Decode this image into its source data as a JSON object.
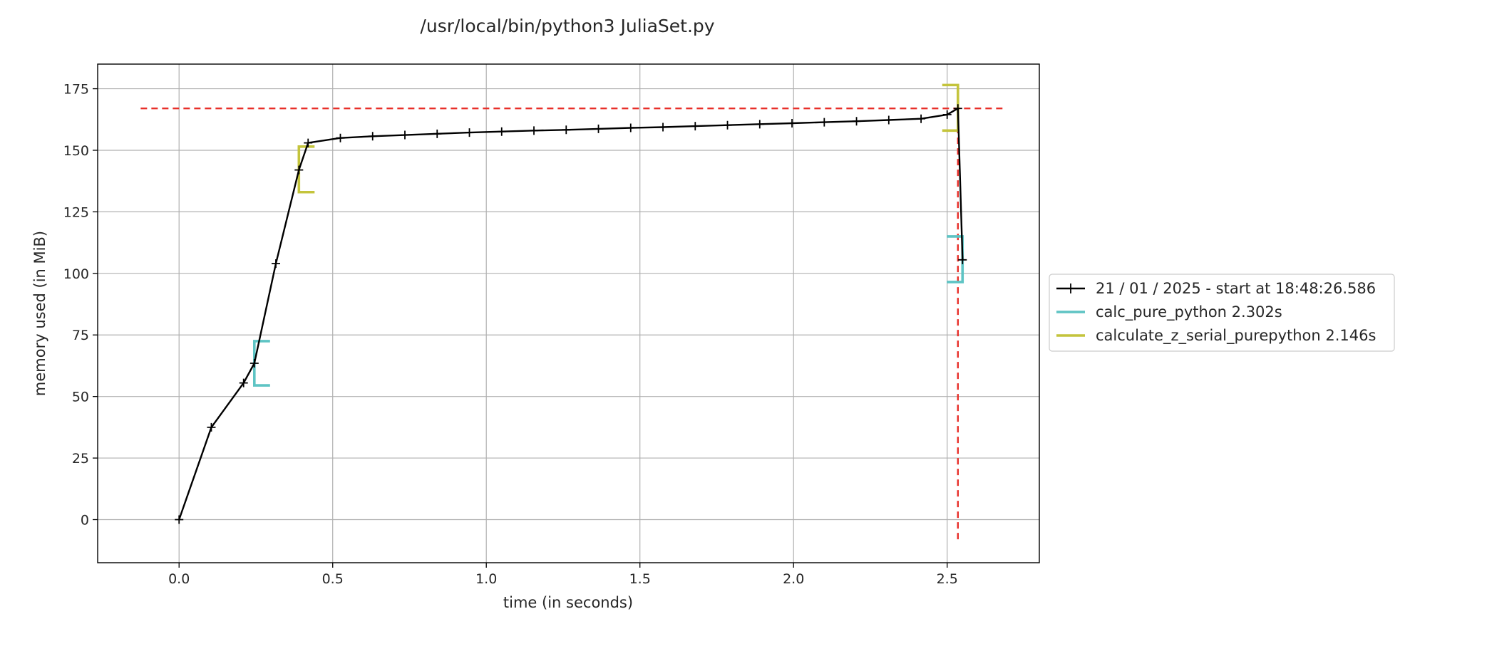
{
  "chart_data": {
    "type": "line",
    "title": "/usr/local/bin/python3 JuliaSet.py",
    "xlabel": "time (in seconds)",
    "ylabel": "memory used (in MiB)",
    "xlim": [
      -0.265,
      2.8
    ],
    "ylim": [
      -17.5,
      185
    ],
    "x_ticks": [
      0.0,
      0.5,
      1.0,
      1.5,
      2.0,
      2.5
    ],
    "x_tick_labels": [
      "0.0",
      "0.5",
      "1.0",
      "1.5",
      "2.0",
      "2.5"
    ],
    "y_ticks": [
      0,
      25,
      50,
      75,
      100,
      125,
      150,
      175
    ],
    "y_tick_labels": [
      "0",
      "25",
      "50",
      "75",
      "100",
      "125",
      "150",
      "175"
    ],
    "grid": true,
    "legend_position": "outside-right",
    "series": [
      {
        "name": "21 / 01 / 2025 - start at 18:48:26.586",
        "color": "#000000",
        "marker": "plus",
        "x": [
          0.0,
          0.105,
          0.21,
          0.245,
          0.315,
          0.39,
          0.42,
          0.525,
          0.63,
          0.735,
          0.84,
          0.945,
          1.05,
          1.155,
          1.26,
          1.365,
          1.47,
          1.575,
          1.68,
          1.785,
          1.89,
          1.995,
          2.1,
          2.205,
          2.31,
          2.415,
          2.5,
          2.535,
          2.55
        ],
        "y": [
          0.0,
          37.5,
          55.5,
          63.5,
          104.0,
          142.0,
          153.0,
          155.0,
          155.7,
          156.2,
          156.7,
          157.2,
          157.6,
          158.0,
          158.3,
          158.7,
          159.1,
          159.4,
          159.8,
          160.2,
          160.6,
          161.0,
          161.4,
          161.8,
          162.3,
          162.8,
          164.5,
          167.0,
          105.5
        ]
      }
    ],
    "function_brackets": [
      {
        "name": "calc_pure_python 2.302s",
        "color": "#5ec4c4",
        "start": 0.245,
        "end": 2.55,
        "start_y": [
          54.5,
          72.5
        ],
        "end_y": [
          96.5,
          115.0
        ]
      },
      {
        "name": "calculate_z_serial_purepython 2.146s",
        "color": "#c4c43c",
        "start": 0.39,
        "end": 2.535,
        "start_y": [
          133.0,
          151.5
        ],
        "end_y": [
          158.0,
          176.5
        ]
      }
    ],
    "max_lines": {
      "color": "#e8302a",
      "hline_y": 167.0,
      "hline_x": [
        -0.125,
        2.68
      ],
      "vline_x": 2.535,
      "vline_y": [
        -8.0,
        167.0
      ]
    }
  }
}
